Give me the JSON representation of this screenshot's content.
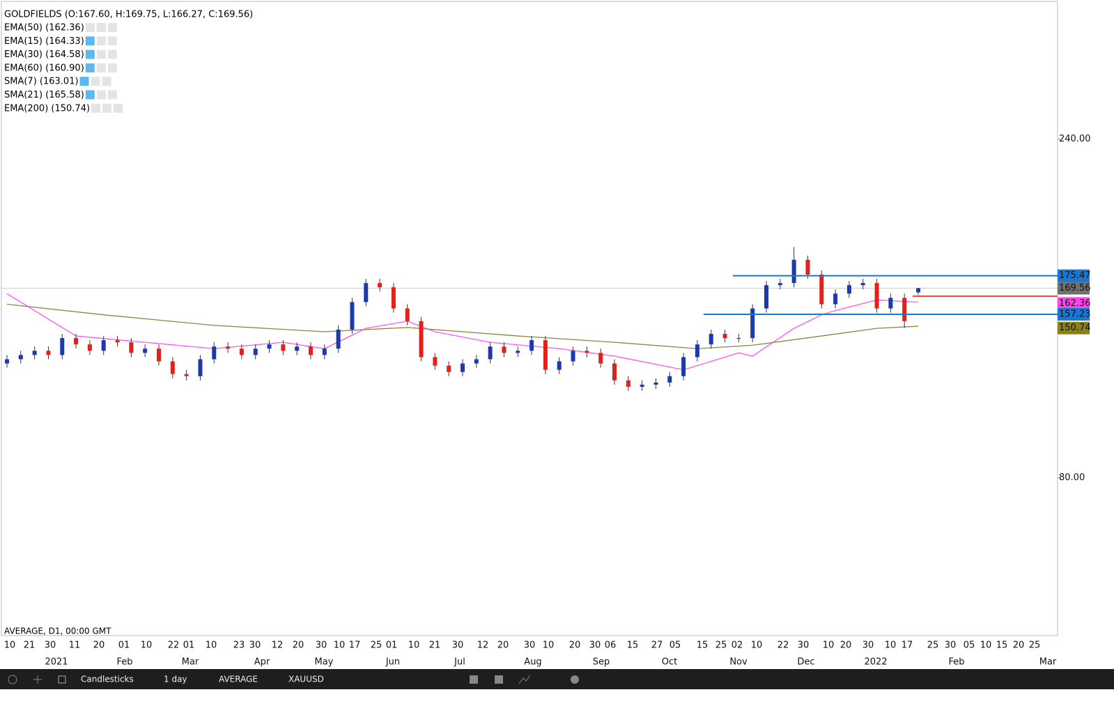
{
  "legend": {
    "title": "GOLDFIELDS (O:167.60, H:169.75, L:166.27, C:169.56)",
    "indicators": [
      "EMA(50) (162.36)",
      "EMA(15) (164.33)",
      "EMA(30) (164.58)",
      "EMA(60) (160.90)",
      "SMA(7) (163.01)",
      "SMA(21) (165.58)",
      "EMA(200) (150.74)"
    ]
  },
  "footer": "AVERAGE, D1, 00:00 GMT",
  "toolbar": {
    "chart_type": "Candlesticks",
    "interval": "1 day",
    "indicator": "AVERAGE",
    "symbol": "XAUUSD"
  },
  "chart_data": {
    "type": "candlestick",
    "open": [
      134,
      136,
      138,
      140,
      138,
      146,
      143,
      140,
      145,
      144,
      139,
      141,
      135,
      129,
      128,
      136,
      142,
      141,
      138,
      141,
      143,
      140,
      142,
      138,
      141,
      150,
      163,
      172,
      170,
      160,
      154,
      137,
      133,
      130,
      134,
      136,
      142,
      139,
      140,
      145,
      131,
      135,
      140,
      139,
      134,
      126,
      123,
      124,
      125,
      128,
      137,
      143,
      148,
      146,
      146,
      160,
      171,
      172,
      183,
      176,
      162,
      167,
      171,
      172,
      160,
      165,
      167.6
    ],
    "high": [
      138,
      140,
      142,
      142,
      148,
      148,
      145,
      147,
      147,
      146,
      143,
      143,
      137,
      131,
      138,
      144,
      144,
      143,
      143,
      145,
      145,
      144,
      144,
      143,
      152,
      165,
      174,
      174,
      172,
      162,
      156,
      139,
      135,
      136,
      138,
      144,
      144,
      142,
      147,
      147,
      137,
      142,
      142,
      141,
      136,
      128,
      126,
      127,
      130,
      139,
      145,
      150,
      150,
      148,
      162,
      173,
      174,
      189,
      185,
      178,
      169,
      173,
      174,
      174,
      167,
      167,
      169.75
    ],
    "low": [
      132,
      134,
      136,
      136,
      136,
      141,
      138,
      138,
      142,
      137,
      137,
      133,
      127,
      126,
      126,
      134,
      139,
      136,
      136,
      139,
      138,
      138,
      136,
      136,
      139,
      148,
      161,
      168,
      158,
      152,
      135,
      131,
      128,
      128,
      132,
      134,
      137,
      137,
      138,
      129,
      129,
      133,
      137,
      132,
      124,
      121,
      121,
      122,
      123,
      126,
      135,
      141,
      144,
      144,
      144,
      158,
      169,
      170,
      174,
      160,
      160,
      165,
      169,
      158,
      158,
      150.7,
      166.27
    ],
    "close": [
      136,
      138,
      140,
      138,
      146,
      143,
      140,
      145,
      144,
      139,
      141,
      135,
      129,
      128,
      136,
      142,
      141,
      138,
      141,
      143,
      140,
      142,
      138,
      141,
      150,
      163,
      172,
      170,
      160,
      154,
      137,
      133,
      130,
      134,
      136,
      142,
      139,
      140,
      145,
      131,
      135,
      140,
      139,
      134,
      126,
      123,
      124,
      125,
      128,
      137,
      143,
      148,
      146,
      146,
      160,
      171,
      172,
      183,
      176,
      162,
      167,
      171,
      172,
      160,
      165,
      154,
      169.56
    ],
    "up_color": "#1c3aa9",
    "down_color": "#e3211c",
    "series": [
      {
        "color": "#ff55ee",
        "x": [
          0,
          5,
          10,
          15,
          20,
          23,
          26,
          29,
          31,
          35,
          40,
          44,
          49,
          53,
          54,
          57,
          59,
          60,
          63,
          66
        ],
        "values": [
          167,
          147,
          144,
          141,
          144,
          141,
          150.6,
          154,
          149,
          144,
          141,
          137.5,
          131,
          139,
          137.5,
          150.6,
          157,
          159,
          164,
          163
        ]
      },
      {
        "color": "#8a8540",
        "x": [
          0,
          7,
          15,
          23,
          29,
          37,
          44,
          50,
          54,
          59,
          63,
          66
        ],
        "values": [
          162,
          157,
          152,
          149,
          151,
          147,
          144,
          141,
          142.6,
          147,
          150.6,
          151.6
        ]
      }
    ],
    "price_labels": [
      {
        "value": 175.47,
        "color": "#1976d2"
      },
      {
        "value": 169.56,
        "color": "#707070"
      },
      {
        "value": 162.36,
        "color": "#ff44ee"
      },
      {
        "value": 157.23,
        "color": "#1976d2"
      },
      {
        "value": 150.74,
        "color": "#8a8218"
      }
    ],
    "level_lines": [
      {
        "value": 165.8,
        "color": "#f04a3a"
      }
    ],
    "ylim": [
      5.4,
      305.1
    ],
    "yticks": [
      {
        "value": 240,
        "label": "240.00"
      },
      {
        "value": 80,
        "label": "80.00"
      }
    ],
    "x_tick_labels": [
      "10",
      "21",
      "30",
      "11",
      "20",
      "01",
      "10",
      "22",
      "01",
      "10",
      "23",
      "30",
      "12",
      "20",
      "30",
      "10",
      "17",
      "25",
      "01",
      "10",
      "21",
      "30",
      "12",
      "20",
      "30",
      "10",
      "20",
      "30",
      "06",
      "15",
      "27",
      "05",
      "15",
      "25",
      "02",
      "10",
      "22",
      "30",
      "10",
      "20",
      "30",
      "10",
      "17",
      "25",
      "30",
      "05",
      "10",
      "15",
      "20",
      "25"
    ],
    "x_month_labels": [
      "2021",
      "Feb",
      "Mar",
      "Apr",
      "May",
      "Jun",
      "Jul",
      "Aug",
      "Sep",
      "Oct",
      "Nov",
      "Dec",
      "2022",
      "Feb",
      "Mar"
    ]
  }
}
